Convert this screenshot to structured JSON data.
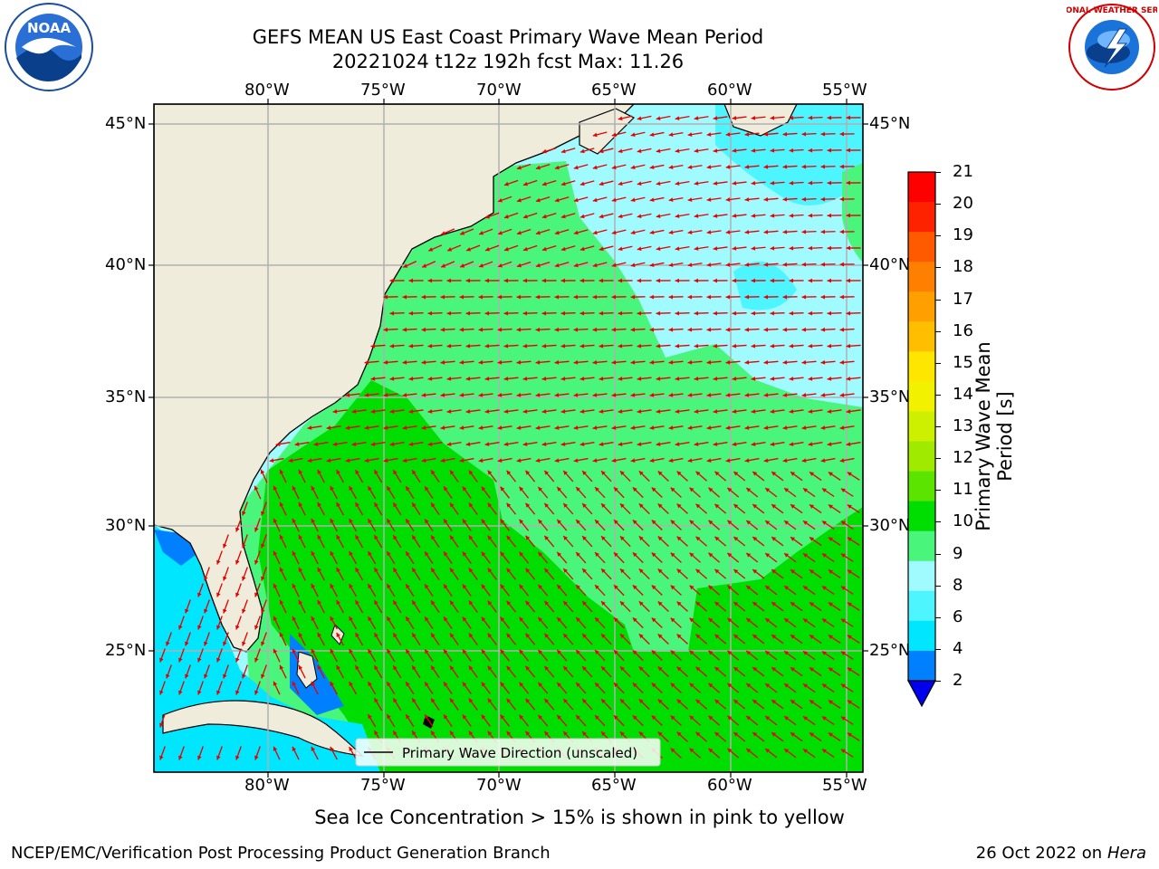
{
  "header": {
    "title_line1": "GEFS MEAN US East Coast Primary Wave Mean Period",
    "title_line2": "20221024 t12z 192h fcst   Max: 11.26",
    "logo_left_text": "NOAA",
    "logo_right_text": "NATIONAL WEATHER SERVICE"
  },
  "map": {
    "lon_labels": [
      "80°W",
      "75°W",
      "70°W",
      "65°W",
      "60°W",
      "55°W"
    ],
    "lat_labels": [
      "45°N",
      "40°N",
      "35°N",
      "30°N",
      "25°N"
    ],
    "legend_label": "Primary Wave Direction (unscaled)",
    "colors": {
      "land": "#efecdc",
      "water_low": "#00e6ff",
      "water_mid": "#9ffbff",
      "water_91": "#49f57a",
      "water_10": "#00dd00",
      "arrow": "#e60000",
      "grid": "#b0b0b0"
    }
  },
  "colorbar": {
    "label": "Primary Wave Mean Period [s]",
    "ticks": [
      "21",
      "20",
      "19",
      "18",
      "17",
      "16",
      "15",
      "14",
      "13",
      "12",
      "11",
      "10",
      "9",
      "8",
      "6",
      "4",
      "2"
    ],
    "colors": [
      "#ff0000",
      "#ff2200",
      "#ff5a00",
      "#ff7f00",
      "#ff9f00",
      "#ffbf00",
      "#ffe600",
      "#f2f200",
      "#ccf000",
      "#a0ea00",
      "#5ae400",
      "#00dd00",
      "#49f57a",
      "#9ffbff",
      "#4cf5ff",
      "#00e6ff",
      "#0080ff"
    ],
    "extend_color": "#0000ee"
  },
  "footer": {
    "ice_note": "Sea Ice Concentration > 15% is shown in pink to yellow",
    "branch": "NCEP/EMC/Verification Post Processing Product Generation Branch",
    "date": "26 Oct 2022 on",
    "host": "Hera"
  }
}
